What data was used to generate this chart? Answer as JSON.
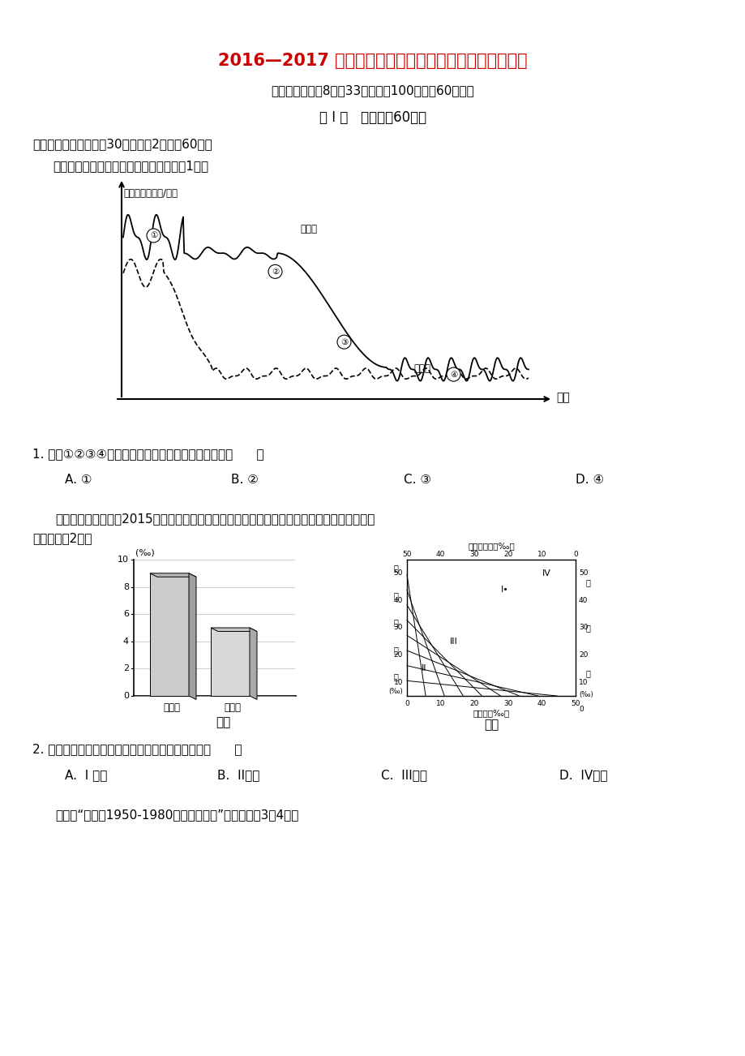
{
  "title": "2016—2017 学年度第二学期高一年级地理学科期中试卷",
  "title_color": "#cc0000",
  "notice": "注意：本试卷兲8页，33题，满分100分，时60分钟。",
  "section1": "第 I 卷   选择题（60分）",
  "section2": "一、单项选择题。（入30题，每题2分，入60分）",
  "intro1": "读图人口再生产模式简略示意图，回答第1题。",
  "q1": "1. 图示①②③④四个阶段中，人口增长速度最快的是（      ）",
  "q1_A": "A. ①",
  "q1_B": "B. ②",
  "q1_C": "C. ③",
  "q1_D": "D. ④",
  "intro2": "下图中图甲表示我国2015年某市人口出生率和死亡率，图乙为我国不同阶段人口增长状况图。",
  "intro2b": "读图回答第2题。",
  "q2": "2. 图甲所示城市人口自然增长状况最接近图乙中的（      ）",
  "q2_A": "A.  I 阶段",
  "q2_B": "B.  II阶段",
  "q2_C": "C.  III阶段",
  "q2_D": "D.  IV阶段",
  "intro3": "如图是“某地区1950-1980年人口增长图”，据图回答3－4题。",
  "bg_color": "#ffffff",
  "text_color": "#000000"
}
